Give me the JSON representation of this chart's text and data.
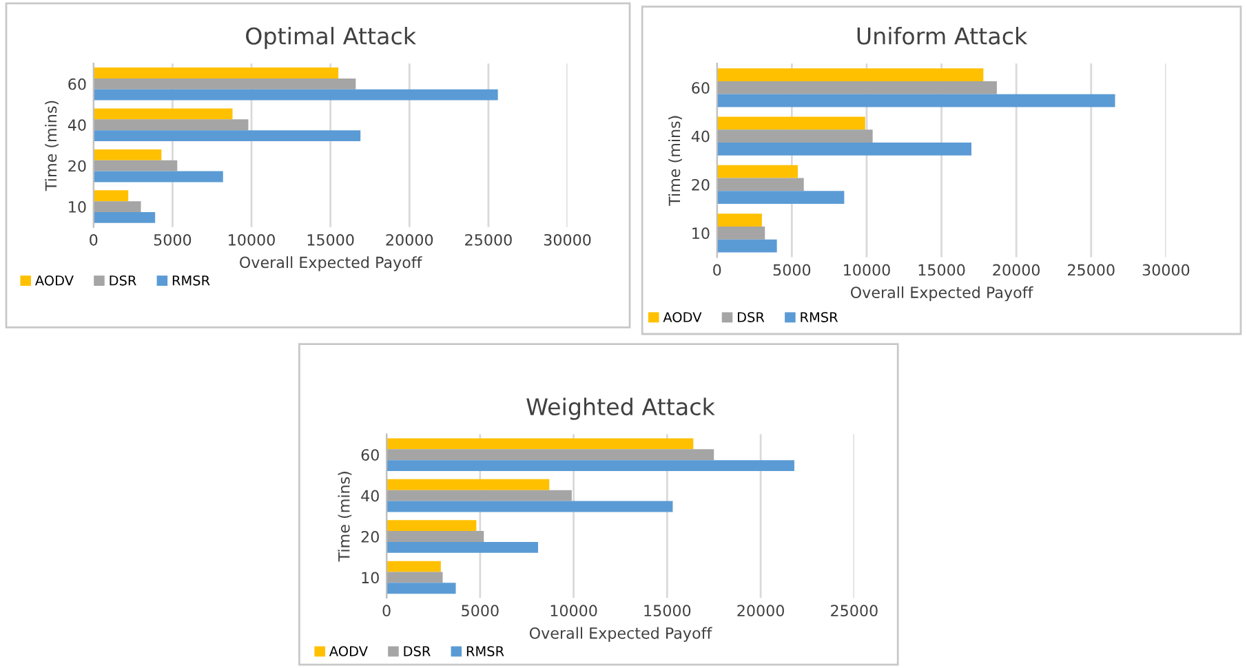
{
  "chart_data": [
    {
      "type": "bar",
      "orientation": "horizontal",
      "title": "Optimal Attack",
      "xlabel": "Overall Expected Payoff",
      "ylabel": "Time (mins)",
      "categories": [
        "60",
        "40",
        "20",
        "10"
      ],
      "xlim": [
        0,
        30000
      ],
      "xticks": [
        0,
        5000,
        10000,
        15000,
        20000,
        25000,
        30000
      ],
      "grid": "x",
      "legend": "bottom left",
      "series": [
        {
          "name": "AODV",
          "color": "#ffc000",
          "values": [
            15500,
            8800,
            4300,
            2200
          ]
        },
        {
          "name": "DSR",
          "color": "#a5a5a5",
          "values": [
            16600,
            9800,
            5300,
            3000
          ]
        },
        {
          "name": "RMSR",
          "color": "#5b9bd5",
          "values": [
            25600,
            16900,
            8200,
            3900
          ]
        }
      ]
    },
    {
      "type": "bar",
      "orientation": "horizontal",
      "title": "Uniform Attack",
      "xlabel": "Overall Expected Payoff",
      "ylabel": "Time (mins)",
      "categories": [
        "60",
        "40",
        "20",
        "10"
      ],
      "xlim": [
        0,
        30000
      ],
      "xticks": [
        0,
        5000,
        10000,
        15000,
        20000,
        25000,
        30000
      ],
      "grid": "x",
      "legend": "bottom left",
      "series": [
        {
          "name": "AODV",
          "color": "#ffc000",
          "values": [
            17800,
            9900,
            5400,
            3000
          ]
        },
        {
          "name": "DSR",
          "color": "#a5a5a5",
          "values": [
            18700,
            10400,
            5800,
            3200
          ]
        },
        {
          "name": "RMSR",
          "color": "#5b9bd5",
          "values": [
            26600,
            17000,
            8500,
            4000
          ]
        }
      ]
    },
    {
      "type": "bar",
      "orientation": "horizontal",
      "title": "Weighted Attack",
      "xlabel": "Overall Expected Payoff",
      "ylabel": "Time (mins)",
      "categories": [
        "60",
        "40",
        "20",
        "10"
      ],
      "xlim": [
        0,
        25000
      ],
      "xticks": [
        0,
        5000,
        10000,
        15000,
        20000,
        25000
      ],
      "grid": "x",
      "legend": "bottom left",
      "series": [
        {
          "name": "AODV",
          "color": "#ffc000",
          "values": [
            16400,
            8700,
            4800,
            2900
          ]
        },
        {
          "name": "DSR",
          "color": "#a5a5a5",
          "values": [
            17500,
            9900,
            5200,
            3000
          ]
        },
        {
          "name": "RMSR",
          "color": "#5b9bd5",
          "values": [
            21800,
            15300,
            8100,
            3700
          ]
        }
      ]
    }
  ]
}
